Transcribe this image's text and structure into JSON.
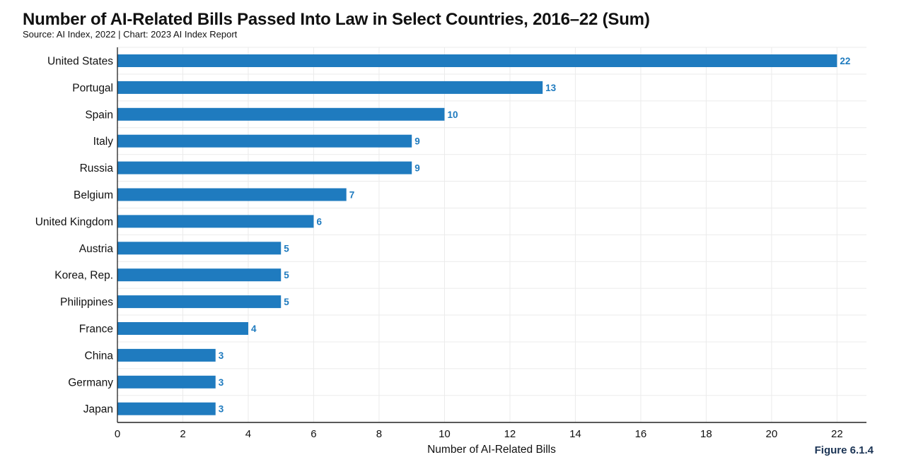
{
  "page": {
    "title": "Number of AI-Related Bills Passed Into Law in Select Countries, 2016–22 (Sum)",
    "subtitle": "Source: AI Index, 2022 | Chart: 2023 AI Index Report",
    "figure_label": "Figure 6.1.4"
  },
  "colors": {
    "bar": "#1f7bbf",
    "value_label": "#1f7bbf",
    "grid": "#ebebeb",
    "axis": "#222222"
  },
  "chart_data": {
    "type": "bar",
    "orientation": "horizontal",
    "title": "Number of AI-Related Bills Passed Into Law in Select Countries, 2016–22 (Sum)",
    "subtitle": "Source: AI Index, 2022 | Chart: 2023 AI Index Report",
    "categories": [
      "United States",
      "Portugal",
      "Spain",
      "Italy",
      "Russia",
      "Belgium",
      "United Kingdom",
      "Austria",
      "Korea, Rep.",
      "Philippines",
      "France",
      "China",
      "Germany",
      "Japan"
    ],
    "values": [
      22,
      13,
      10,
      9,
      9,
      7,
      6,
      5,
      5,
      5,
      4,
      3,
      3,
      3
    ],
    "xlabel": "Number of AI-Related Bills",
    "ylabel": "",
    "xlim": [
      0,
      22.9
    ],
    "xticks": [
      0,
      2,
      4,
      6,
      8,
      10,
      12,
      14,
      16,
      18,
      20,
      22
    ],
    "grid": true,
    "data_labels": true,
    "legend": "none"
  }
}
